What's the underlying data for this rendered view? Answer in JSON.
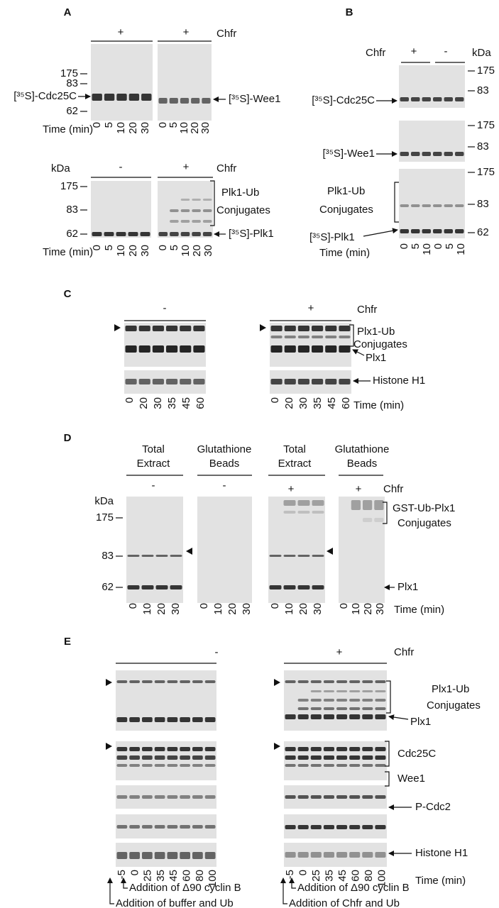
{
  "panel_a": {
    "letter": "A",
    "treatments": [
      "+",
      "+",
      "-",
      "+"
    ],
    "chfr": "Chfr",
    "kda": "kDa",
    "markers_top": [
      "175",
      "83",
      "62"
    ],
    "markers_bottom": [
      "175",
      "83",
      "62"
    ],
    "cdc25c": "[³⁵S]-Cdc25C",
    "wee1": "[³⁵S]-Wee1",
    "plk1_ub": "Plk1-Ub",
    "conjugates": "Conjugates",
    "plk1": "[³⁵S]-Plk1",
    "time_label": "Time (min)",
    "times": [
      "0",
      "5",
      "10",
      "20",
      "30"
    ]
  },
  "panel_b": {
    "letter": "B",
    "chfr": "Chfr",
    "treatments": [
      "+",
      "-"
    ],
    "kda": "kDa",
    "markers_cdc25c": [
      "175",
      "83"
    ],
    "markers_wee1": [
      "175",
      "83"
    ],
    "markers_plk1": [
      "175",
      "83",
      "62"
    ],
    "cdc25c": "[³⁵S]-Cdc25C",
    "wee1": "[³⁵S]-Wee1",
    "plk1_ub": "Plk1-Ub",
    "conjugates": "Conjugates",
    "plk1": "[³⁵S]-Plk1",
    "time_label": "Time (min)",
    "times": [
      "0",
      "5",
      "10",
      "0",
      "5",
      "10"
    ]
  },
  "panel_c": {
    "letter": "C",
    "treatments": [
      "-",
      "+"
    ],
    "chfr": "Chfr",
    "plx1_ub": "Plx1-Ub",
    "conjugates": "Conjugates",
    "plx1": "Plx1",
    "histone": "Histone H1",
    "time_label": "Time (min)",
    "times": [
      "0",
      "20",
      "30",
      "35",
      "45",
      "60"
    ]
  },
  "panel_d": {
    "letter": "D",
    "columns": [
      {
        "header": [
          "Total",
          "Extract"
        ],
        "treatment": "-"
      },
      {
        "header": [
          "Glutathione",
          "Beads"
        ],
        "treatment": "-"
      },
      {
        "header": [
          "Total",
          "Extract"
        ],
        "treatment": "+"
      },
      {
        "header": [
          "Glutathione",
          "Beads"
        ],
        "treatment": "+"
      }
    ],
    "chfr": "Chfr",
    "kda": "kDa",
    "markers": [
      "175",
      "83",
      "62"
    ],
    "gst": "GST-Ub-Plx1",
    "conjugates": "Conjugates",
    "plx1": "Plx1",
    "time_label": "Time (min)",
    "times": [
      "0",
      "10",
      "20",
      "30"
    ]
  },
  "panel_e": {
    "letter": "E",
    "treatments": [
      "-",
      "+"
    ],
    "chfr": "Chfr",
    "plx1_ub": "Plx1-Ub",
    "conjugates": "Conjugates",
    "plx1": "Plx1",
    "cdc25c": "Cdc25C",
    "wee1": "Wee1",
    "p_cdc2": "P-Cdc2",
    "histone": "Histone H1",
    "time_label": "Time (min)",
    "times": [
      "-5",
      "0",
      "25",
      "35",
      "45",
      "60",
      "80",
      "100"
    ],
    "annotations_left": [
      "Addition of Δ90 cyclin B",
      "Addition of buffer and Ub"
    ],
    "annotations_right": [
      "Addition of Δ90 cyclin B",
      "Addition of Chfr and Ub"
    ]
  }
}
